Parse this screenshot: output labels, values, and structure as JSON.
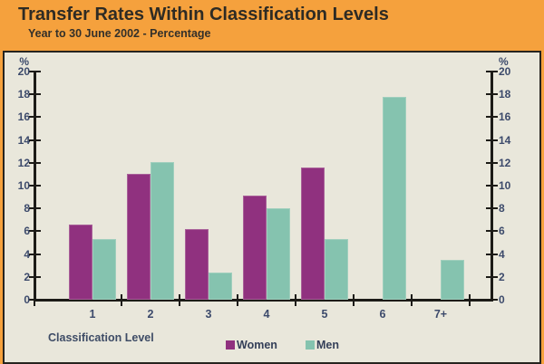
{
  "header": {
    "title": "Transfer Rates Within Classification Levels",
    "subtitle": "Year to 30 June 2002 - Percentage"
  },
  "chart_data": {
    "type": "bar",
    "categories": [
      "1",
      "2",
      "3",
      "4",
      "5",
      "6",
      "7+"
    ],
    "series": [
      {
        "name": "Women",
        "color": "#90317f",
        "values": [
          6.6,
          11.0,
          6.2,
          9.1,
          11.6,
          0,
          0
        ]
      },
      {
        "name": "Men",
        "color": "#85c3af",
        "values": [
          5.3,
          12.1,
          2.4,
          8.0,
          5.3,
          17.8,
          3.5
        ]
      }
    ],
    "title": "Transfer Rates Within Classification Levels",
    "subtitle": "Year to 30 June 2002 - Percentage",
    "xlabel": "Classification Level",
    "ylabel": "%",
    "ylim": [
      0,
      20
    ],
    "ytick_step": 2,
    "y_axis_sides": "both",
    "grid": false,
    "legend_position": "bottom"
  },
  "colors": {
    "page_background": "#f5a13d",
    "panel_background": "#e9e7db",
    "panel_border": "#26241f",
    "axis": "#1c1b17",
    "axis_text": "#3c4a6b",
    "women": "#90317f",
    "men": "#85c3af"
  }
}
